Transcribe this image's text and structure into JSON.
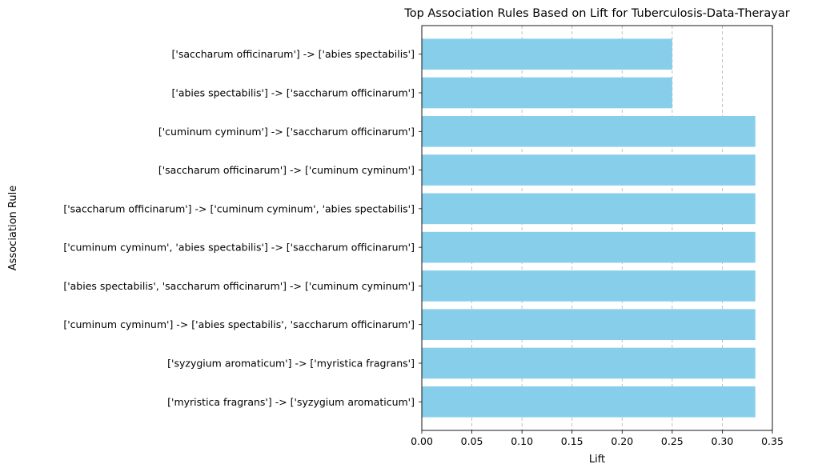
{
  "chart_data": {
    "type": "bar",
    "orientation": "horizontal",
    "title": "Top Association Rules Based on Lift for Tuberculosis-Data-Therayar",
    "xlabel": "Lift",
    "ylabel": "Association Rule",
    "xlim": [
      0,
      0.35
    ],
    "xticks": [
      "0.00",
      "0.05",
      "0.10",
      "0.15",
      "0.20",
      "0.25",
      "0.30",
      "0.35"
    ],
    "grid": "x-dashed",
    "bar_color": "#87ceeb",
    "categories": [
      "['saccharum officinarum'] -> ['abies spectabilis']",
      "['abies spectabilis'] -> ['saccharum officinarum']",
      "['cuminum cyminum'] -> ['saccharum officinarum']",
      "['saccharum officinarum'] -> ['cuminum cyminum']",
      "['saccharum officinarum'] -> ['cuminum cyminum', 'abies spectabilis']",
      "['cuminum cyminum', 'abies spectabilis'] -> ['saccharum officinarum']",
      "['abies spectabilis', 'saccharum officinarum'] -> ['cuminum cyminum']",
      "['cuminum cyminum'] -> ['abies spectabilis', 'saccharum officinarum']",
      "['syzygium aromaticum'] -> ['myristica fragrans']",
      "['myristica fragrans'] -> ['syzygium aromaticum']"
    ],
    "values": [
      0.25,
      0.25,
      0.333,
      0.333,
      0.333,
      0.333,
      0.333,
      0.333,
      0.333,
      0.333
    ]
  }
}
